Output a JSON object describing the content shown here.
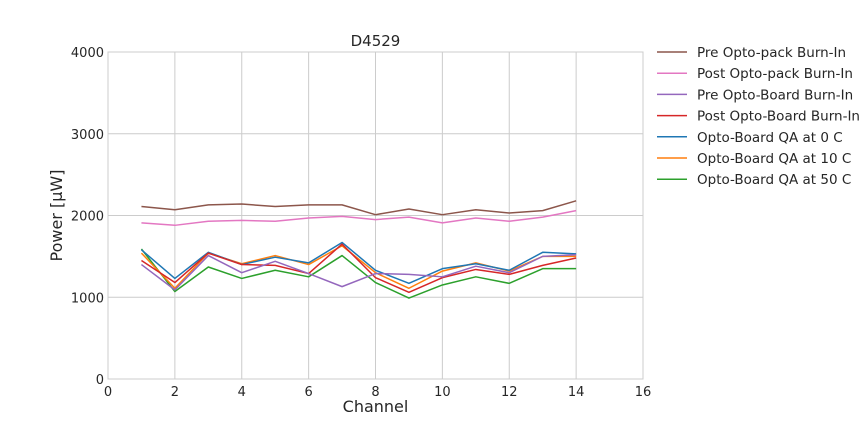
{
  "chart_data": {
    "type": "line",
    "title": "D4529",
    "xlabel": "Channel",
    "ylabel": "Power [μW]",
    "xlim": [
      0,
      16
    ],
    "ylim": [
      0,
      4000
    ],
    "xticks": [
      0,
      2,
      4,
      6,
      8,
      10,
      12,
      14,
      16
    ],
    "yticks": [
      0,
      1000,
      2000,
      3000,
      4000
    ],
    "grid": true,
    "legend_position": "outside-right",
    "x": [
      1,
      2,
      3,
      4,
      5,
      6,
      7,
      8,
      9,
      10,
      11,
      12,
      13,
      14
    ],
    "series": [
      {
        "name": "Pre Opto-pack Burn-In",
        "color": "#8c564b",
        "values": [
          2110,
          2070,
          2130,
          2140,
          2110,
          2130,
          2130,
          2010,
          2080,
          2010,
          2070,
          2030,
          2060,
          2180
        ]
      },
      {
        "name": "Post Opto-pack Burn-In",
        "color": "#e377c2",
        "values": [
          1910,
          1880,
          1930,
          1940,
          1930,
          1970,
          1990,
          1950,
          1980,
          1910,
          1970,
          1930,
          1980,
          2060
        ]
      },
      {
        "name": "Pre Opto-Board Burn-In",
        "color": "#9467bd",
        "values": [
          1400,
          1090,
          1510,
          1300,
          1440,
          1290,
          1130,
          1290,
          1280,
          1250,
          1380,
          1300,
          1500,
          1520
        ]
      },
      {
        "name": "Post Opto-Board Burn-In",
        "color": "#d62728",
        "values": [
          1450,
          1180,
          1540,
          1400,
          1390,
          1290,
          1650,
          1240,
          1060,
          1240,
          1340,
          1280,
          1390,
          1480
        ]
      },
      {
        "name": "Opto-Board QA at 0 C",
        "color": "#1f77b4",
        "values": [
          1580,
          1230,
          1550,
          1400,
          1490,
          1420,
          1670,
          1330,
          1170,
          1350,
          1410,
          1330,
          1550,
          1530
        ]
      },
      {
        "name": "Opto-Board QA at 10 C",
        "color": "#ff7f0e",
        "values": [
          1540,
          1110,
          1540,
          1410,
          1510,
          1400,
          1630,
          1300,
          1110,
          1320,
          1420,
          1320,
          1500,
          1500
        ]
      },
      {
        "name": "Opto-Board QA at 50 C",
        "color": "#2ca02c",
        "values": [
          1590,
          1070,
          1370,
          1230,
          1330,
          1250,
          1510,
          1180,
          990,
          1150,
          1250,
          1170,
          1350,
          1350
        ]
      }
    ]
  }
}
